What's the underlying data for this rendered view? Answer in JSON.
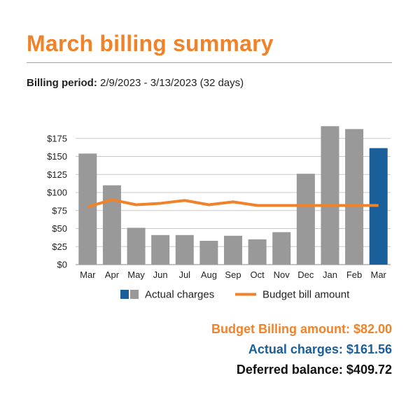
{
  "header": {
    "title": "March billing summary",
    "period_label": "Billing period:",
    "period_value": "2/9/2023 - 3/13/2023 (32 days)"
  },
  "chart_data": {
    "type": "bar",
    "categories": [
      "Mar",
      "Apr",
      "May",
      "Jun",
      "Jul",
      "Aug",
      "Sep",
      "Oct",
      "Nov",
      "Dec",
      "Jan",
      "Feb",
      "Mar"
    ],
    "series": [
      {
        "name": "Actual charges",
        "type": "bar",
        "values": [
          154,
          110,
          51,
          41,
          41,
          33,
          40,
          35,
          45,
          126,
          192,
          188,
          161.56
        ],
        "colors": [
          "#999999",
          "#999999",
          "#999999",
          "#999999",
          "#999999",
          "#999999",
          "#999999",
          "#999999",
          "#999999",
          "#999999",
          "#999999",
          "#999999",
          "#1a5e9a"
        ]
      },
      {
        "name": "Budget bill amount",
        "type": "line",
        "color": "#f0822a",
        "values": [
          80,
          90,
          83,
          85,
          89,
          83,
          87,
          82,
          82,
          82,
          82,
          82,
          82
        ]
      }
    ],
    "yticks": [
      "$0",
      "$25",
      "$50",
      "$75",
      "$100",
      "$125",
      "$150",
      "$175"
    ],
    "ylim": [
      0,
      200
    ],
    "grid": true,
    "legend": "bottom"
  },
  "summary": {
    "budget_billing": "Budget Billing amount: $82.00",
    "actual_charges": "Actual charges: $161.56",
    "deferred_balance": "Deferred balance: $409.72"
  }
}
